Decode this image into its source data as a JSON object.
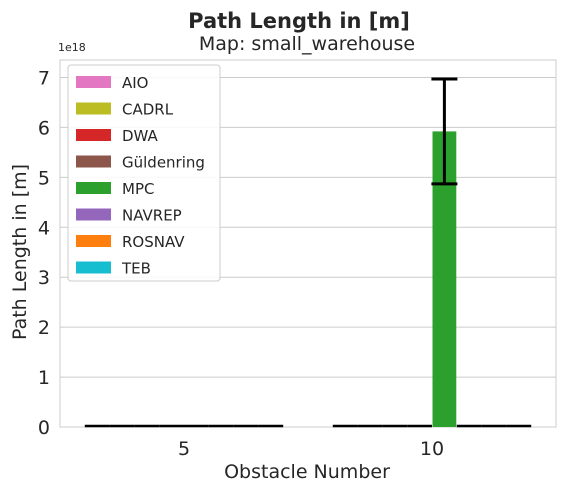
{
  "chart_data": {
    "type": "bar",
    "suptitle": "Path Length in [m]",
    "title": "Map: small_warehouse",
    "xlabel": "Obstacle Number",
    "ylabel": "Path Length in [m]",
    "offset_text": "1e18",
    "ylim": [
      0,
      7.35
    ],
    "yticks": [
      0,
      1,
      2,
      3,
      4,
      5,
      6,
      7
    ],
    "ytick_labels": [
      "0",
      "1",
      "2",
      "3",
      "4",
      "5",
      "6",
      "7"
    ],
    "grid": true,
    "legend_position": "upper-left",
    "categories": [
      "5",
      "10"
    ],
    "series": [
      {
        "name": "AIO",
        "color": "#e377c2",
        "values": [
          0,
          0
        ],
        "err": [
          0,
          0
        ]
      },
      {
        "name": "CADRL",
        "color": "#bcbd22",
        "values": [
          0,
          0
        ],
        "err": [
          0,
          0
        ]
      },
      {
        "name": "DWA",
        "color": "#d62728",
        "values": [
          0,
          0
        ],
        "err": [
          0,
          0
        ]
      },
      {
        "name": "Güldenring",
        "color": "#8c564b",
        "values": [
          0,
          0
        ],
        "err": [
          0,
          0
        ]
      },
      {
        "name": "MPC",
        "color": "#2ca02c",
        "values": [
          0,
          5.92
        ],
        "err": [
          0,
          1.05
        ]
      },
      {
        "name": "NAVREP",
        "color": "#9467bd",
        "values": [
          0,
          0
        ],
        "err": [
          0,
          0
        ]
      },
      {
        "name": "ROSNAV",
        "color": "#ff7f0e",
        "values": [
          0,
          0
        ],
        "err": [
          0,
          0
        ]
      },
      {
        "name": "TEB",
        "color": "#17becf",
        "values": [
          0,
          0
        ],
        "err": [
          0,
          0
        ]
      }
    ]
  }
}
